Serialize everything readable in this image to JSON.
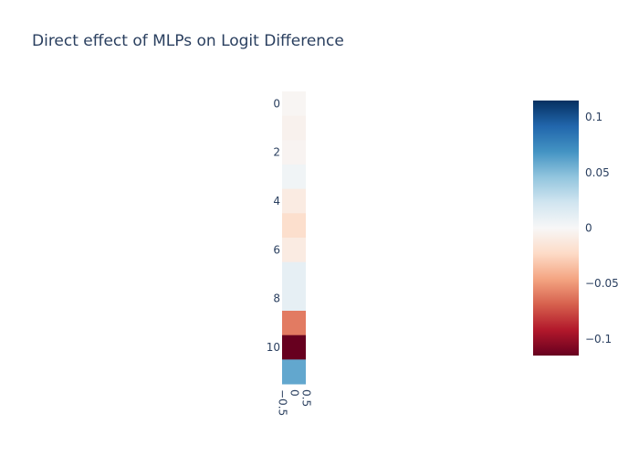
{
  "chart_data": {
    "type": "heatmap",
    "title": "Direct effect of MLPs on Logit Difference",
    "x_ticks": [
      "−0.5",
      "0",
      "0.5"
    ],
    "y_ticks": [
      "0",
      "2",
      "4",
      "6",
      "8",
      "10"
    ],
    "rows": [
      0,
      1,
      2,
      3,
      4,
      5,
      6,
      7,
      8,
      9,
      10,
      11
    ],
    "values": [
      -0.002,
      -0.005,
      -0.003,
      0.004,
      -0.01,
      -0.02,
      -0.01,
      0.01,
      0.01,
      -0.06,
      -0.115,
      0.06
    ],
    "zmin": -0.115,
    "zmax": 0.115,
    "colorscale": "RdBu",
    "colorbar_ticks": [
      "0.1",
      "0.05",
      "0",
      "−0.05",
      "−0.1"
    ],
    "colorbar_tick_values": [
      0.1,
      0.05,
      0,
      -0.05,
      -0.1
    ]
  }
}
